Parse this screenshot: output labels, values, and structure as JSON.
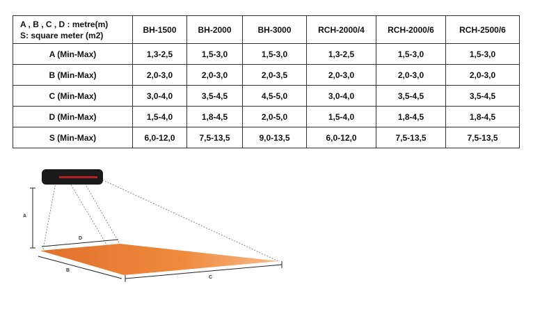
{
  "table": {
    "corner": [
      "A , B , C , D : metre(m)",
      "S: square meter (m2)"
    ],
    "columns": [
      "BH-1500",
      "BH-2000",
      "BH-3000",
      "RCH-2000/4",
      "RCH-2000/6",
      "RCH-2500/6"
    ],
    "rows": [
      {
        "label": "A (Min-Max)",
        "values": [
          "1,3-2,5",
          "1,5-3,0",
          "1,5-3,0",
          "1,3-2,5",
          "1,5-3,0",
          "1,5-3,0"
        ]
      },
      {
        "label": "B (Min-Max)",
        "values": [
          "2,0-3,0",
          "2,0-3,0",
          "2,0-3,5",
          "2,0-3,0",
          "2,0-3,0",
          "2,0-3,0"
        ]
      },
      {
        "label": "C (Min-Max)",
        "values": [
          "3,0-4,0",
          "3,5-4,5",
          "4,5-5,0",
          "3,0-4,0",
          "3,5-4,5",
          "3,5-4,5"
        ]
      },
      {
        "label": "D (Min-Max)",
        "values": [
          "1,5-4,0",
          "1,8-4,5",
          "2,0-5,0",
          "1,5-4,0",
          "1,8-4,5",
          "1,8-4,5"
        ]
      },
      {
        "label": "S (Min-Max)",
        "values": [
          "6,0-12,0",
          "7,5-13,5",
          "9,0-13,5",
          "6,0-12,0",
          "7,5-13,5",
          "7,5-13,5"
        ]
      }
    ]
  },
  "diagram": {
    "labels": {
      "a": "A",
      "b": "B",
      "c": "C",
      "d": "D"
    }
  }
}
